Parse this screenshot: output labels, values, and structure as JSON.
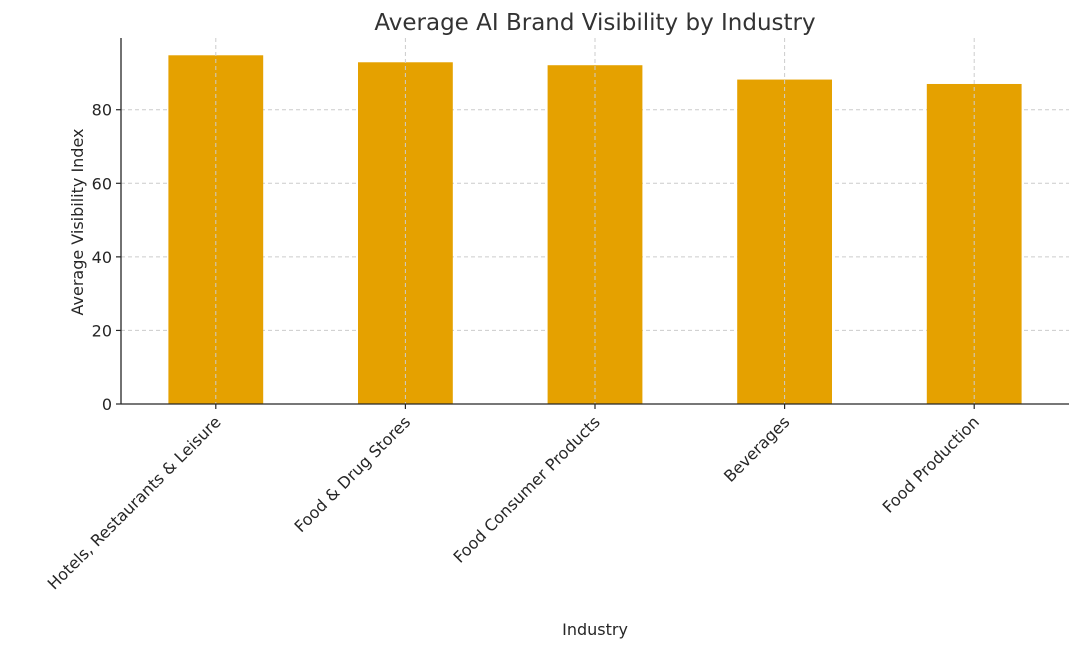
{
  "chart_data": {
    "type": "bar",
    "title": "Average AI Brand Visibility by Industry",
    "xlabel": "Industry",
    "ylabel": "Average Visibility Index",
    "categories": [
      "Hotels, Restaurants & Leisure",
      "Food & Drug Stores",
      "Food Consumer Products",
      "Beverages",
      "Food Production"
    ],
    "values": [
      94.8,
      92.9,
      92.1,
      88.2,
      87.0
    ],
    "ylim": [
      0,
      99.5
    ],
    "yticks": [
      0,
      20,
      40,
      60,
      80
    ],
    "grid": true,
    "bar_color": "#E5A100",
    "grid_color": "#cccccc",
    "text_color": "#262626"
  }
}
